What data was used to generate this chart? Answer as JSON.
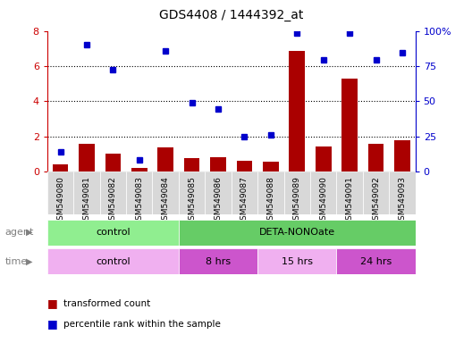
{
  "title": "GDS4408 / 1444392_at",
  "samples": [
    "GSM549080",
    "GSM549081",
    "GSM549082",
    "GSM549083",
    "GSM549084",
    "GSM549085",
    "GSM549086",
    "GSM549087",
    "GSM549088",
    "GSM549089",
    "GSM549090",
    "GSM549091",
    "GSM549092",
    "GSM549093"
  ],
  "transformed_count": [
    0.4,
    1.6,
    1.0,
    0.2,
    1.35,
    0.75,
    0.8,
    0.6,
    0.55,
    6.85,
    1.4,
    5.3,
    1.6,
    1.8
  ],
  "percentile_rank": [
    1.1,
    7.2,
    5.8,
    0.65,
    6.85,
    3.9,
    3.55,
    2.0,
    2.1,
    7.9,
    6.35,
    7.9,
    6.35,
    6.75
  ],
  "bar_color": "#aa0000",
  "dot_color": "#0000cc",
  "left_ylim": [
    0,
    8
  ],
  "right_ylim": [
    0,
    8
  ],
  "left_yticks": [
    0,
    2,
    4,
    6,
    8
  ],
  "right_ytick_labels": [
    "0",
    "25",
    "50",
    "75",
    "100%"
  ],
  "agent_groups": [
    {
      "label": "control",
      "start": 0,
      "end": 5,
      "color": "#90ee90"
    },
    {
      "label": "DETA-NONOate",
      "start": 5,
      "end": 14,
      "color": "#66cc66"
    }
  ],
  "time_groups": [
    {
      "label": "control",
      "start": 0,
      "end": 5,
      "color": "#f0b0f0"
    },
    {
      "label": "8 hrs",
      "start": 5,
      "end": 8,
      "color": "#cc55cc"
    },
    {
      "label": "15 hrs",
      "start": 8,
      "end": 11,
      "color": "#f0b0f0"
    },
    {
      "label": "24 hrs",
      "start": 11,
      "end": 14,
      "color": "#cc55cc"
    }
  ],
  "legend_bar_label": "transformed count",
  "legend_dot_label": "percentile rank within the sample",
  "plot_bg_color": "#ffffff",
  "sample_bg_color": "#d8d8d8",
  "title_color": "#000000",
  "left_axis_color": "#cc0000",
  "right_axis_color": "#0000cc",
  "grid_color": "#000000",
  "agent_label_color": "#808080",
  "time_label_color": "#808080"
}
